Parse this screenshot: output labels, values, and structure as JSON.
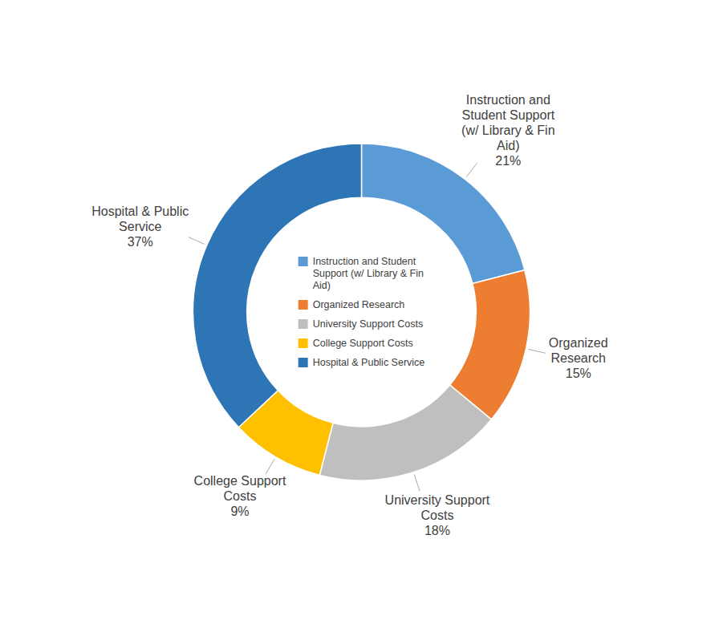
{
  "chart_data": {
    "type": "donut",
    "categories": [
      "Instruction and Student\nSupport (w/ Library & Fin\nAid)",
      "Organized Research",
      "University Support Costs",
      "College Support Costs",
      "Hospital & Public Service"
    ],
    "values": [
      21,
      15,
      18,
      9,
      37
    ],
    "colors": [
      "#5B9BD5",
      "#ED7D31",
      "#BFBFBF",
      "#FFC000",
      "#2E75B6"
    ],
    "annotations": [
      "Instruction and\nStudent Support\n(w/ Library & Fin\nAid)\n21%",
      "Organized\nResearch\n15%",
      "University Support\nCosts\n18%",
      "College Support\nCosts\n9%",
      "Hospital & Public\nService\n37%"
    ],
    "legend": "center"
  }
}
